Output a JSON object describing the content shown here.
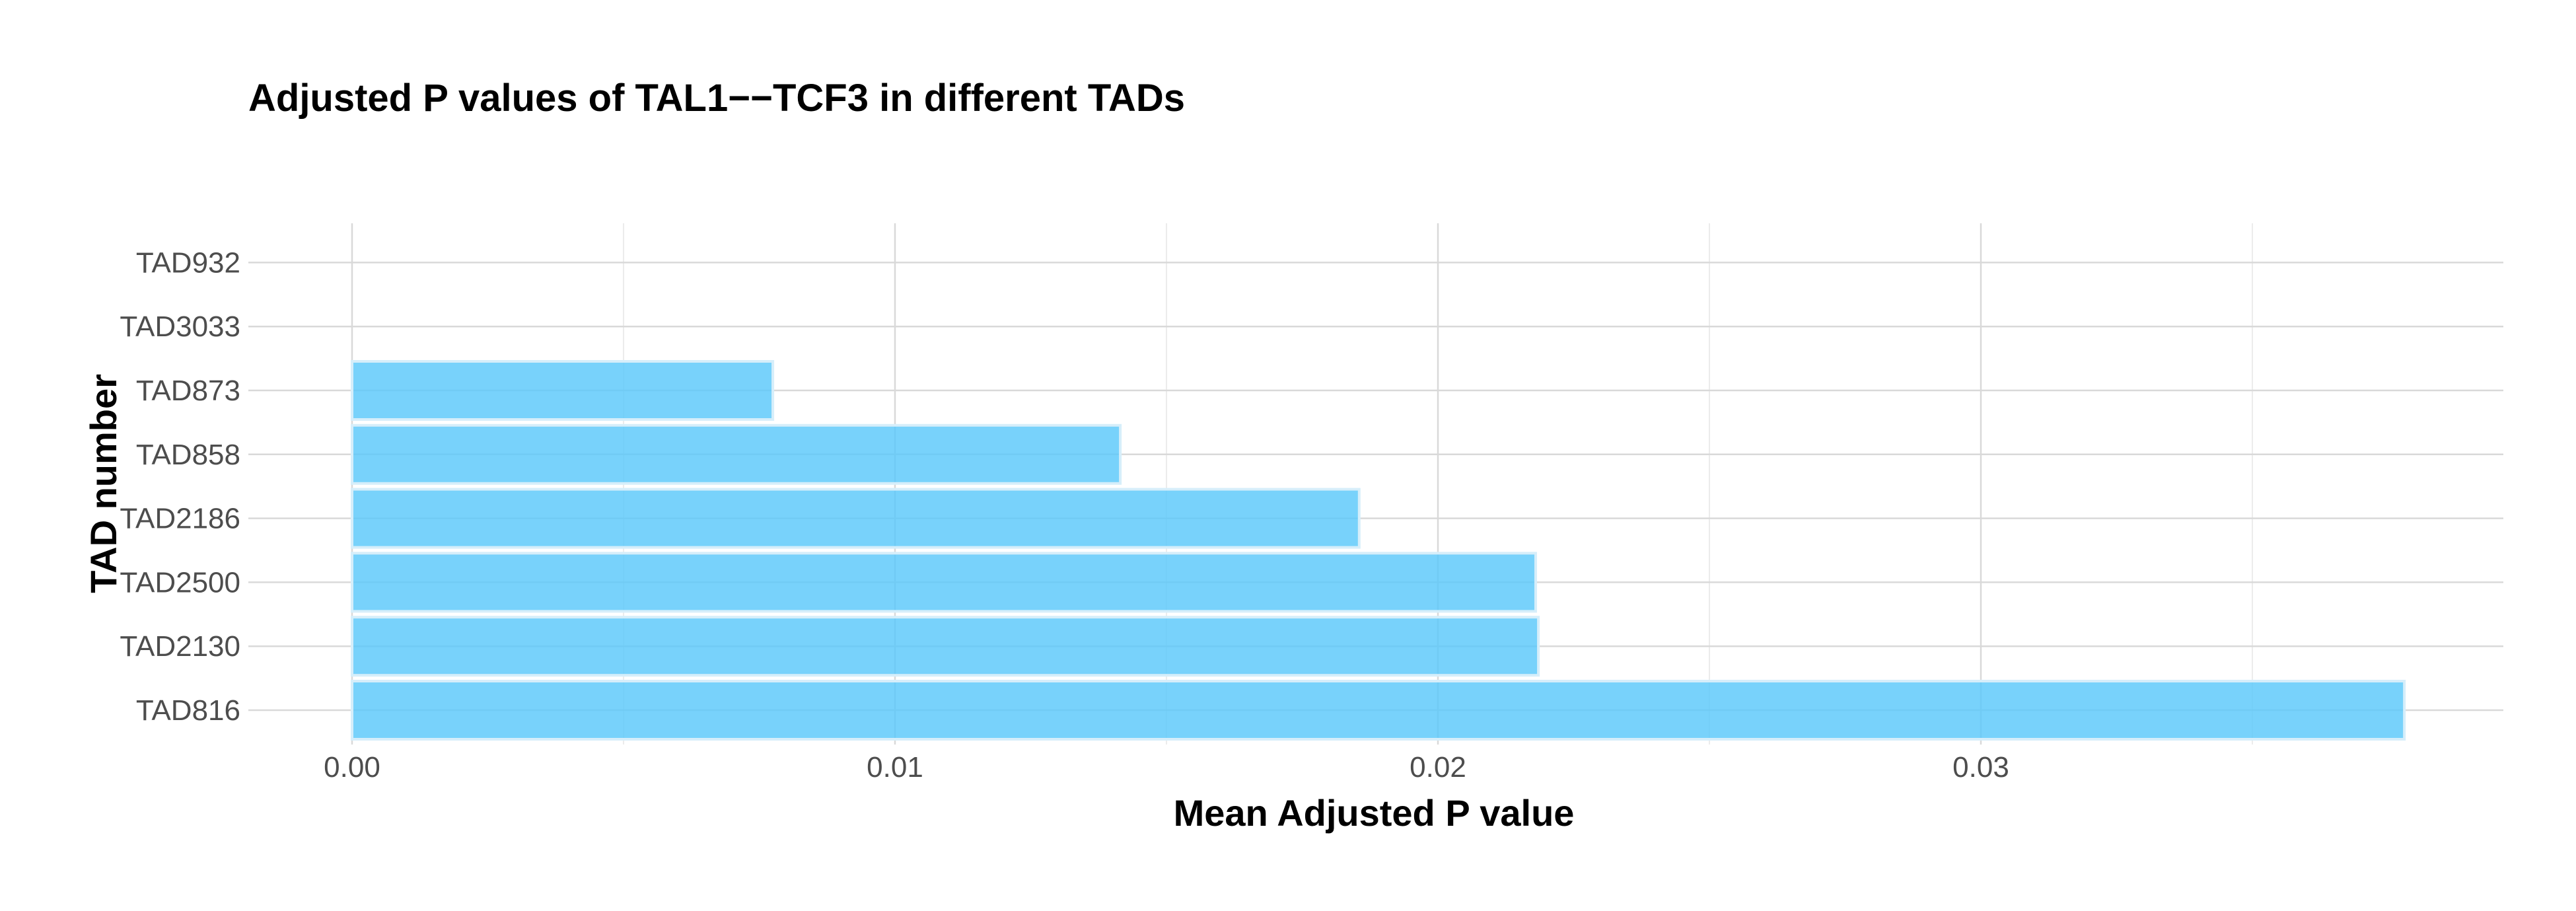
{
  "chart_data": {
    "type": "bar",
    "orientation": "horizontal",
    "title": "Adjusted P values of TAL1−−TCF3 in different TADs",
    "xlabel": "Mean Adjusted P value",
    "ylabel": "TAD number",
    "categories": [
      "TAD816",
      "TAD2130",
      "TAD2500",
      "TAD2186",
      "TAD858",
      "TAD873",
      "TAD3033",
      "TAD932"
    ],
    "values": [
      0.0378,
      0.02185,
      0.0218,
      0.01855,
      0.01415,
      0.00775,
      0,
      0
    ],
    "xlim": [
      -0.0017,
      0.0397
    ],
    "x_ticks": [
      0,
      0.01,
      0.02,
      0.03
    ],
    "x_tick_labels": [
      "0.00",
      "0.01",
      "0.02",
      "0.03"
    ],
    "grid": true,
    "legend": "none",
    "colors": {
      "bar_fill": "#5ac8fa",
      "bar_outline": "#d6eefa"
    }
  }
}
